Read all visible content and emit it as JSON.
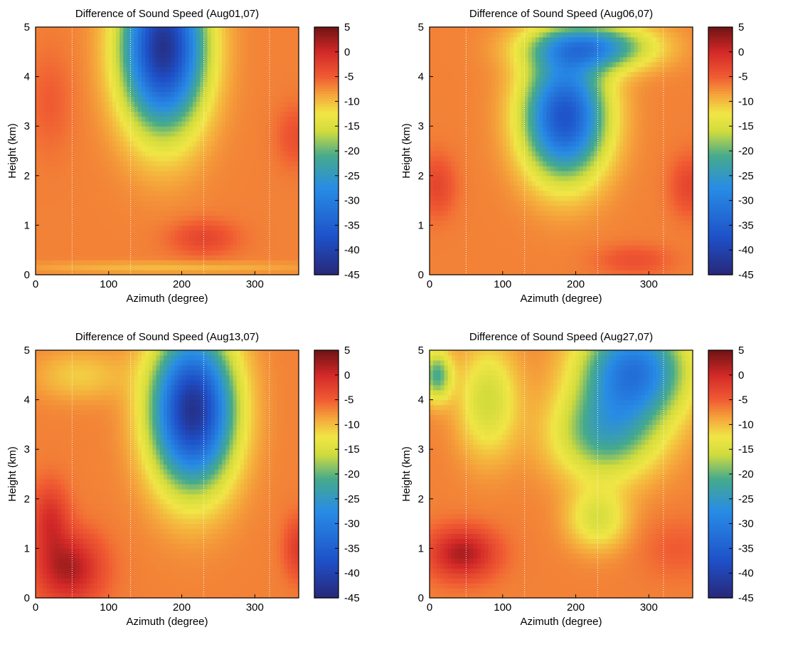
{
  "chart_data": [
    {
      "type": "heatmap",
      "title": "Difference of Sound Speed (Aug01,07)",
      "xlabel": "Azimuth (degree)",
      "ylabel": "Height (km)",
      "xlim": [
        0,
        360
      ],
      "ylim": [
        0,
        5
      ],
      "xticks": [
        "0",
        "100",
        "200",
        "300"
      ],
      "yticks": [
        "0",
        "1",
        "2",
        "3",
        "4",
        "5"
      ],
      "colorbar": {
        "min": -45,
        "max": 5,
        "ticks": [
          "5",
          "0",
          "-5",
          "-10",
          "-15",
          "-20",
          "-25",
          "-30",
          "-35",
          "-40",
          "-45"
        ]
      },
      "field": {
        "base": -7,
        "blobs": [
          {
            "x": 175,
            "y": 4.6,
            "sx": 55,
            "sy": 1.6,
            "a": -36
          },
          {
            "x": 230,
            "y": 0.75,
            "sx": 45,
            "sy": 0.35,
            "a": 4
          },
          {
            "x": 355,
            "y": 2.8,
            "sx": 25,
            "sy": 0.6,
            "a": 3
          },
          {
            "x": 20,
            "y": 3.5,
            "sx": 30,
            "sy": 1.0,
            "a": 2
          },
          {
            "x": 180,
            "y": 0.15,
            "sx": 200,
            "sy": 0.12,
            "a": -3
          }
        ]
      }
    },
    {
      "type": "heatmap",
      "title": "Difference of Sound Speed (Aug06,07)",
      "xlabel": "Azimuth (degree)",
      "ylabel": "Height (km)",
      "xlim": [
        0,
        360
      ],
      "ylim": [
        0,
        5
      ],
      "xticks": [
        "0",
        "100",
        "200",
        "300"
      ],
      "yticks": [
        "0",
        "1",
        "2",
        "3",
        "4",
        "5"
      ],
      "colorbar": {
        "min": -45,
        "max": 5,
        "ticks": [
          "5",
          "0",
          "-5",
          "-10",
          "-15",
          "-20",
          "-25",
          "-30",
          "-35",
          "-40",
          "-45"
        ]
      },
      "field": {
        "base": -7,
        "blobs": [
          {
            "x": 185,
            "y": 3.2,
            "sx": 55,
            "sy": 1.2,
            "a": -30
          },
          {
            "x": 220,
            "y": 4.6,
            "sx": 80,
            "sy": 0.45,
            "a": -20
          },
          {
            "x": 10,
            "y": 1.8,
            "sx": 25,
            "sy": 0.6,
            "a": 4
          },
          {
            "x": 355,
            "y": 1.8,
            "sx": 25,
            "sy": 0.6,
            "a": 4
          },
          {
            "x": 280,
            "y": 0.3,
            "sx": 50,
            "sy": 0.3,
            "a": 3
          }
        ]
      }
    },
    {
      "type": "heatmap",
      "title": "Difference of Sound Speed (Aug13,07)",
      "xlabel": "Azimuth (degree)",
      "ylabel": "Height (km)",
      "xlim": [
        0,
        360
      ],
      "ylim": [
        0,
        5
      ],
      "xticks": [
        "0",
        "100",
        "200",
        "300"
      ],
      "yticks": [
        "0",
        "1",
        "2",
        "3",
        "4",
        "5"
      ],
      "colorbar": {
        "min": -45,
        "max": 5,
        "ticks": [
          "5",
          "0",
          "-5",
          "-10",
          "-15",
          "-20",
          "-25",
          "-30",
          "-35",
          "-40",
          "-45"
        ]
      },
      "field": {
        "base": -7,
        "blobs": [
          {
            "x": 215,
            "y": 3.8,
            "sx": 55,
            "sy": 1.5,
            "a": -36
          },
          {
            "x": 45,
            "y": 0.6,
            "sx": 45,
            "sy": 0.7,
            "a": 9
          },
          {
            "x": 20,
            "y": 1.6,
            "sx": 25,
            "sy": 0.7,
            "a": 6
          },
          {
            "x": 360,
            "y": 1.0,
            "sx": 20,
            "sy": 0.6,
            "a": 5
          },
          {
            "x": 60,
            "y": 4.5,
            "sx": 60,
            "sy": 0.5,
            "a": -4
          }
        ]
      }
    },
    {
      "type": "heatmap",
      "title": "Difference of Sound Speed (Aug27,07)",
      "xlabel": "Azimuth (degree)",
      "ylabel": "Height (km)",
      "xlim": [
        0,
        360
      ],
      "ylim": [
        0,
        5
      ],
      "xticks": [
        "0",
        "100",
        "200",
        "300"
      ],
      "yticks": [
        "0",
        "1",
        "2",
        "3",
        "4",
        "5"
      ],
      "colorbar": {
        "min": -45,
        "max": 5,
        "ticks": [
          "5",
          "0",
          "-5",
          "-10",
          "-15",
          "-20",
          "-25",
          "-30",
          "-35",
          "-40",
          "-45"
        ]
      },
      "field": {
        "base": -7,
        "blobs": [
          {
            "x": 280,
            "y": 4.6,
            "sx": 70,
            "sy": 1.0,
            "a": -24
          },
          {
            "x": 240,
            "y": 3.3,
            "sx": 70,
            "sy": 0.9,
            "a": -14
          },
          {
            "x": 80,
            "y": 4.0,
            "sx": 40,
            "sy": 1.1,
            "a": -9
          },
          {
            "x": 10,
            "y": 4.5,
            "sx": 20,
            "sy": 0.5,
            "a": -14
          },
          {
            "x": 230,
            "y": 1.6,
            "sx": 40,
            "sy": 0.6,
            "a": -8
          },
          {
            "x": 45,
            "y": 0.9,
            "sx": 45,
            "sy": 0.5,
            "a": 9
          },
          {
            "x": 340,
            "y": 1.0,
            "sx": 50,
            "sy": 0.6,
            "a": 2
          }
        ]
      }
    }
  ]
}
